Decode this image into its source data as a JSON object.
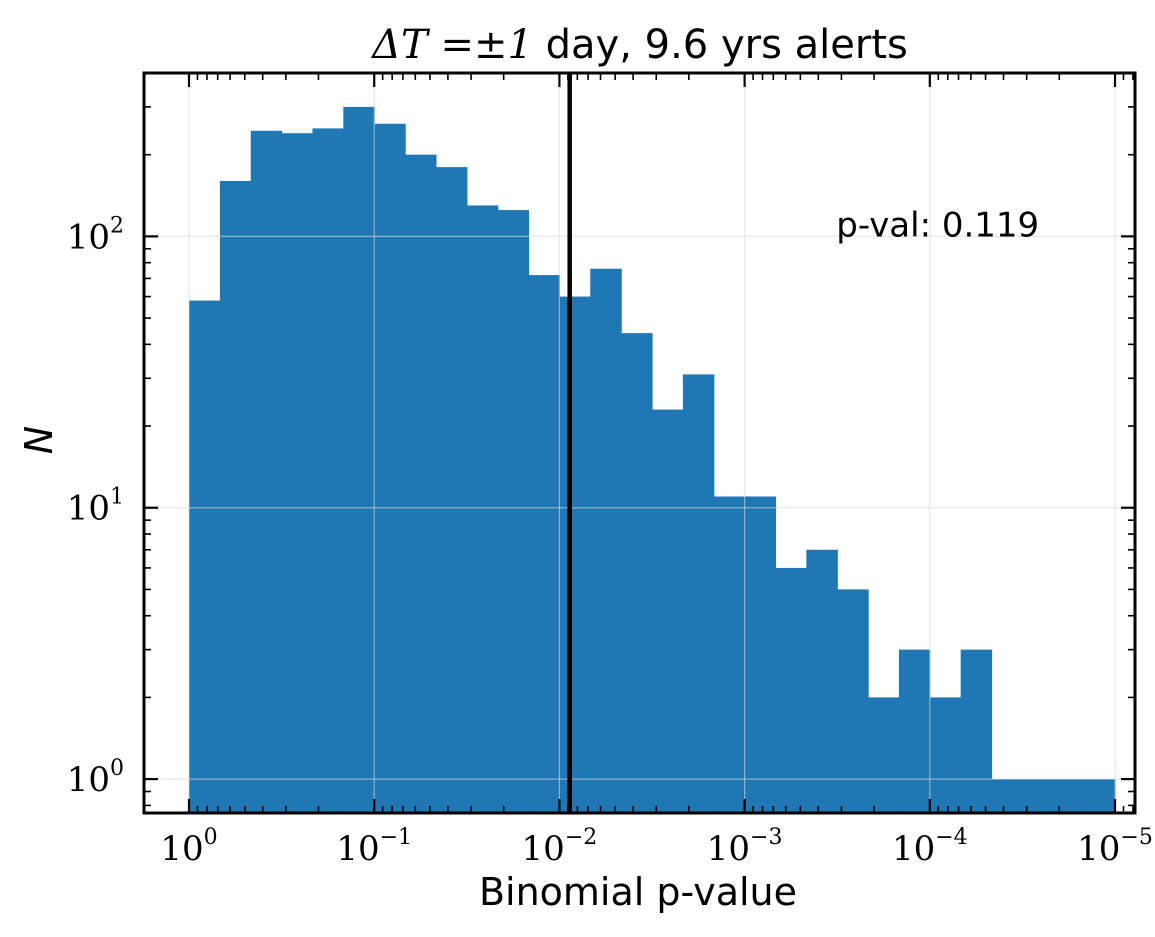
{
  "chart_data": {
    "type": "bar",
    "title": {
      "math": "ΔT =±1",
      "rest": " day, 9.6 yrs alerts"
    },
    "xlabel": "Binomial p-value",
    "ylabel": "N",
    "x_scale": "log",
    "x_axis_direction": "decreasing",
    "y_scale": "log",
    "xlim": [
      1.75,
      7.8e-06
    ],
    "ylim": [
      0.75,
      400
    ],
    "x_ticks": [
      {
        "value": 1,
        "base": "10",
        "exp": "0"
      },
      {
        "value": 0.1,
        "base": "10",
        "exp": "−1"
      },
      {
        "value": 0.01,
        "base": "10",
        "exp": "−2"
      },
      {
        "value": 0.001,
        "base": "10",
        "exp": "−3"
      },
      {
        "value": 0.0001,
        "base": "10",
        "exp": "−4"
      },
      {
        "value": 1e-05,
        "base": "10",
        "exp": "−5"
      }
    ],
    "y_ticks": [
      {
        "value": 1,
        "base": "10",
        "exp": "0"
      },
      {
        "value": 10,
        "base": "10",
        "exp": "1"
      },
      {
        "value": 100,
        "base": "10",
        "exp": "2"
      }
    ],
    "bins": {
      "x_start_log10": 0,
      "x_end_log10": -5,
      "count": 30,
      "values": [
        58,
        160,
        245,
        240,
        250,
        300,
        260,
        200,
        180,
        130,
        125,
        72,
        60,
        76,
        44,
        23,
        31,
        11,
        11,
        6,
        7,
        5,
        2,
        3,
        2,
        3,
        1,
        1,
        1,
        1
      ]
    },
    "vertical_line": {
      "x": 0.0088,
      "color": "#000000"
    },
    "annotation": {
      "text": "p-val: 0.119",
      "x": 0.00032,
      "y": 100
    },
    "bar_color": "#1f77b4",
    "grid": true,
    "legend": "none"
  }
}
